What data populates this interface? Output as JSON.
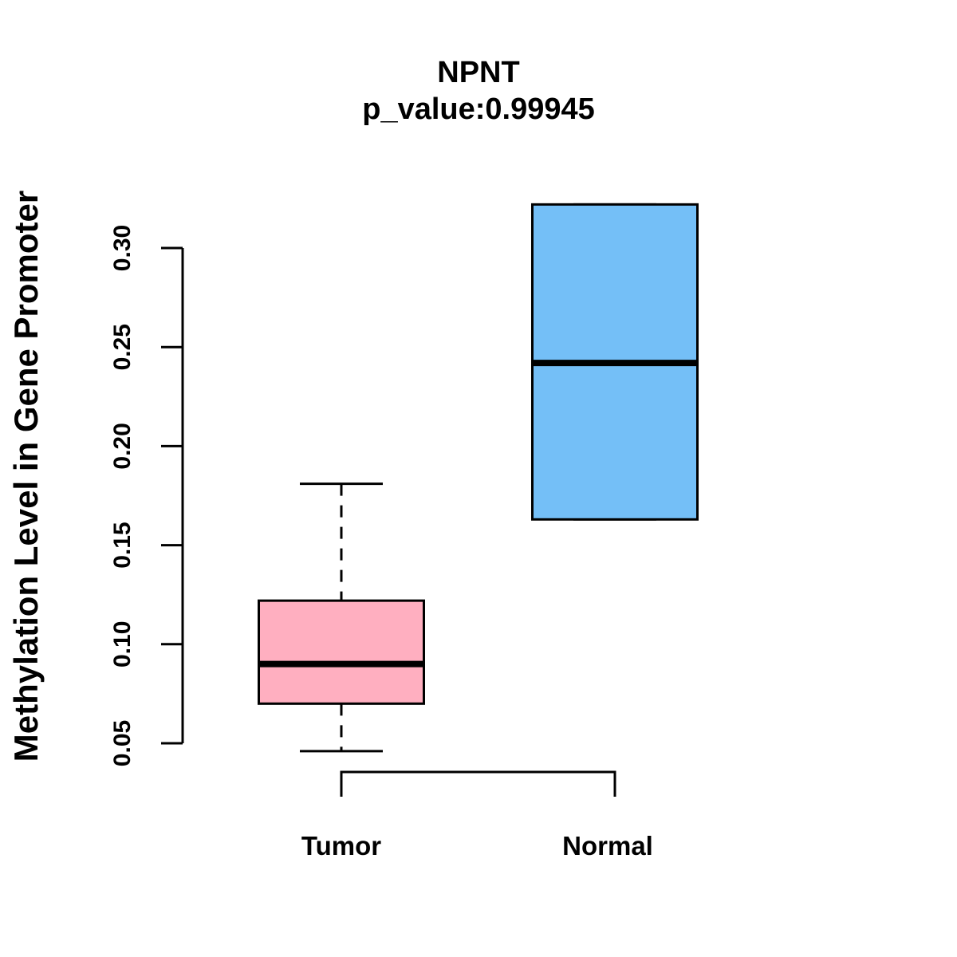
{
  "chart_data": {
    "type": "boxplot",
    "title": "NPNT",
    "subtitle": "p_value:0.99945",
    "ylabel": "Methylation Level in Gene Promoter",
    "xlabel": "",
    "ylim": [
      0.05,
      0.3
    ],
    "yticks": [
      0.05,
      0.1,
      0.15,
      0.2,
      0.25,
      0.3
    ],
    "grid": false,
    "legend": "none",
    "colors": {
      "axis": "#000000",
      "text": "#000000",
      "background": "#FFFFFF"
    },
    "groups": [
      {
        "label": "Tumor",
        "color": "#FFAFC0",
        "stats": {
          "lower_whisker": 0.046,
          "q1": 0.07,
          "median": 0.09,
          "q3": 0.122,
          "upper_whisker": 0.181
        }
      },
      {
        "label": "Normal",
        "color": "#74BFF7",
        "stats": {
          "lower_whisker": 0.163,
          "q1": 0.163,
          "median": 0.242,
          "q3": 0.322,
          "upper_whisker": 0.322
        }
      }
    ]
  }
}
